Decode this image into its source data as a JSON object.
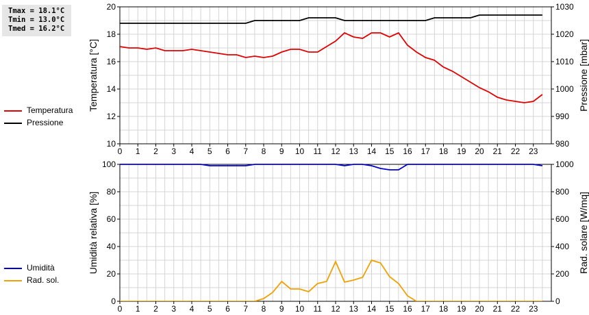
{
  "stats": {
    "tmax": "Tmax = 18.1°C",
    "tmin": "Tmin = 13.0°C",
    "tmed": "Tmed = 16.2°C"
  },
  "legend_top": [
    {
      "label": "Temperatura",
      "color": "#e00000"
    },
    {
      "label": "Pressione",
      "color": "#000000"
    }
  ],
  "legend_bottom": [
    {
      "label": "Umidità",
      "color": "#0000cc"
    },
    {
      "label": "Rad. sol.",
      "color": "#f0a000"
    }
  ],
  "chart_data": [
    {
      "type": "line",
      "x_ticks": [
        "0",
        "1",
        "2",
        "3",
        "4",
        "5",
        "6",
        "7",
        "8",
        "9",
        "10",
        "11",
        "12",
        "13",
        "14",
        "15",
        "16",
        "17",
        "18",
        "19",
        "20",
        "21",
        "22",
        "23"
      ],
      "xlim": [
        0,
        24
      ],
      "ylabel": "Temperatura [°C]",
      "ylim": [
        10,
        20
      ],
      "y_ticks": [
        "10",
        "12",
        "14",
        "16",
        "18",
        "20"
      ],
      "y2label": "Pressione [mbar]",
      "y2lim": [
        980,
        1030
      ],
      "y2_ticks": [
        "980",
        "990",
        "1000",
        "1010",
        "1020",
        "1030"
      ],
      "grid": true,
      "series": [
        {
          "name": "Temperatura",
          "axis": "left",
          "color": "#e00000",
          "x": [
            0,
            0.5,
            1,
            1.5,
            2,
            2.5,
            3,
            3.5,
            4,
            4.5,
            5,
            5.5,
            6,
            6.5,
            7,
            7.5,
            8,
            8.5,
            9,
            9.5,
            10,
            10.5,
            11,
            11.5,
            12,
            12.5,
            13,
            13.5,
            14,
            14.5,
            15,
            15.5,
            16,
            16.5,
            17,
            17.5,
            18,
            18.5,
            19,
            19.5,
            20,
            20.5,
            21,
            21.5,
            22,
            22.5,
            23,
            23.5
          ],
          "y": [
            17.1,
            17.0,
            17.0,
            16.9,
            17.0,
            16.8,
            16.8,
            16.8,
            16.9,
            16.8,
            16.7,
            16.6,
            16.5,
            16.5,
            16.3,
            16.4,
            16.3,
            16.4,
            16.7,
            16.9,
            16.9,
            16.7,
            16.7,
            17.1,
            17.5,
            18.1,
            17.8,
            17.7,
            18.1,
            18.1,
            17.8,
            18.1,
            17.2,
            16.7,
            16.3,
            16.1,
            15.6,
            15.3,
            14.9,
            14.5,
            14.1,
            13.8,
            13.4,
            13.2,
            13.1,
            13.0,
            13.1,
            13.6
          ]
        },
        {
          "name": "Pressione",
          "axis": "right",
          "color": "#000000",
          "x": [
            0,
            1,
            2,
            3,
            4,
            5,
            6,
            7,
            7.5,
            8,
            9,
            10,
            10.5,
            11,
            12,
            12.5,
            13,
            14,
            15,
            16,
            17,
            17.5,
            18,
            19,
            19.5,
            20,
            21,
            22,
            23,
            23.5
          ],
          "y": [
            1024,
            1024,
            1024,
            1024,
            1024,
            1024,
            1024,
            1024,
            1025,
            1025,
            1025,
            1025,
            1026,
            1026,
            1026,
            1025,
            1025,
            1025,
            1025,
            1025,
            1025,
            1026,
            1026,
            1026,
            1026,
            1027,
            1027,
            1027,
            1027,
            1027
          ]
        }
      ]
    },
    {
      "type": "line",
      "x_ticks": [
        "0",
        "1",
        "2",
        "3",
        "4",
        "5",
        "6",
        "7",
        "8",
        "9",
        "10",
        "11",
        "12",
        "13",
        "14",
        "15",
        "16",
        "17",
        "18",
        "19",
        "20",
        "21",
        "22",
        "23"
      ],
      "xlim": [
        0,
        24
      ],
      "ylabel": "Umidità relativa [%]",
      "ylim": [
        0,
        100
      ],
      "y_ticks": [
        "0",
        "20",
        "40",
        "60",
        "80",
        "100"
      ],
      "y2label": "Rad. solare [W/mq]",
      "y2lim": [
        0,
        1000
      ],
      "y2_ticks": [
        "0",
        "200",
        "400",
        "600",
        "800",
        "1000"
      ],
      "grid": true,
      "series": [
        {
          "name": "Umidità",
          "axis": "left",
          "color": "#0000cc",
          "x": [
            0,
            0.5,
            1,
            1.5,
            2,
            2.5,
            3,
            3.5,
            4,
            4.5,
            5,
            5.5,
            6,
            6.5,
            7,
            7.5,
            8,
            8.5,
            9,
            9.5,
            10,
            10.5,
            11,
            11.5,
            12,
            12.5,
            13,
            13.5,
            14,
            14.5,
            15,
            15.5,
            16,
            16.5,
            17,
            17.5,
            18,
            18.5,
            19,
            19.5,
            20,
            20.5,
            21,
            21.5,
            22,
            22.5,
            23,
            23.5
          ],
          "y": [
            100,
            100,
            100,
            100,
            100,
            100,
            100,
            100,
            100,
            100,
            99,
            99,
            99,
            99,
            99,
            100,
            100,
            100,
            100,
            100,
            100,
            100,
            100,
            100,
            100,
            99,
            100,
            100,
            99,
            97,
            96,
            96,
            100,
            100,
            100,
            100,
            100,
            100,
            100,
            100,
            100,
            100,
            100,
            100,
            100,
            100,
            100,
            99
          ]
        },
        {
          "name": "Rad. sol.",
          "axis": "right",
          "color": "#f0a000",
          "x": [
            0,
            0.5,
            1,
            1.5,
            2,
            2.5,
            3,
            3.5,
            4,
            4.5,
            5,
            5.5,
            6,
            6.5,
            7,
            7.5,
            8,
            8.5,
            9,
            9.5,
            10,
            10.5,
            11,
            11.5,
            12,
            12.5,
            13,
            13.5,
            14,
            14.5,
            15,
            15.5,
            16,
            16.5,
            17,
            17.5,
            18,
            18.5,
            19,
            19.5,
            20,
            20.5,
            21,
            21.5,
            22,
            22.5,
            23,
            23.5
          ],
          "y": [
            0,
            0,
            0,
            0,
            0,
            0,
            0,
            0,
            0,
            0,
            0,
            0,
            0,
            0,
            0,
            0,
            20,
            65,
            145,
            90,
            90,
            70,
            130,
            145,
            290,
            140,
            155,
            175,
            300,
            280,
            180,
            130,
            40,
            0,
            0,
            0,
            0,
            0,
            0,
            0,
            0,
            0,
            0,
            0,
            0,
            0,
            0,
            0
          ]
        }
      ]
    }
  ]
}
